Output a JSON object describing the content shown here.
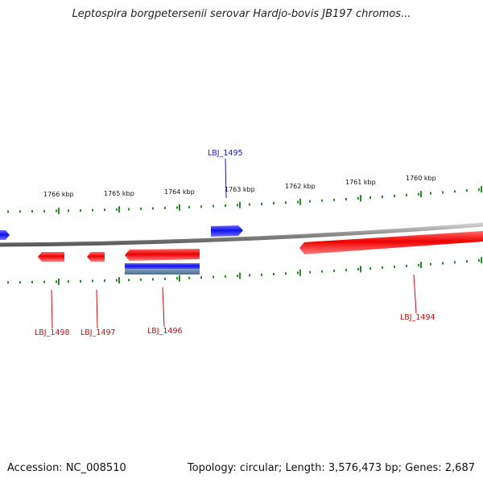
{
  "title": "Leptospira borgpetersenii serovar Hardjo-bovis JB197 chromos...",
  "accession": "Accession: NC_008510",
  "summary": "Topology: circular; Length: 3,576,473 bp; Genes: 2,687",
  "colors": {
    "backbone": "#8a8a8a",
    "forward_gene": "#1a1aff",
    "reverse_gene": "#ff1a1a",
    "tick": "#2a8a2a",
    "forward_label": "#1a1aaa",
    "reverse_label": "#c01010"
  },
  "ticks": {
    "labels": [
      "1766 kbp",
      "1765 kbp",
      "1764 kbp",
      "1763 kbp",
      "1762 kbp",
      "1761 kbp",
      "1760 kbp"
    ]
  },
  "genes": [
    {
      "id": "LBJ_1495",
      "strand": "forward"
    },
    {
      "id": "LBJ_1498",
      "strand": "reverse"
    },
    {
      "id": "LBJ_1497",
      "strand": "reverse"
    },
    {
      "id": "LBJ_1496",
      "strand": "reverse"
    },
    {
      "id": "LBJ_1494",
      "strand": "reverse"
    }
  ]
}
